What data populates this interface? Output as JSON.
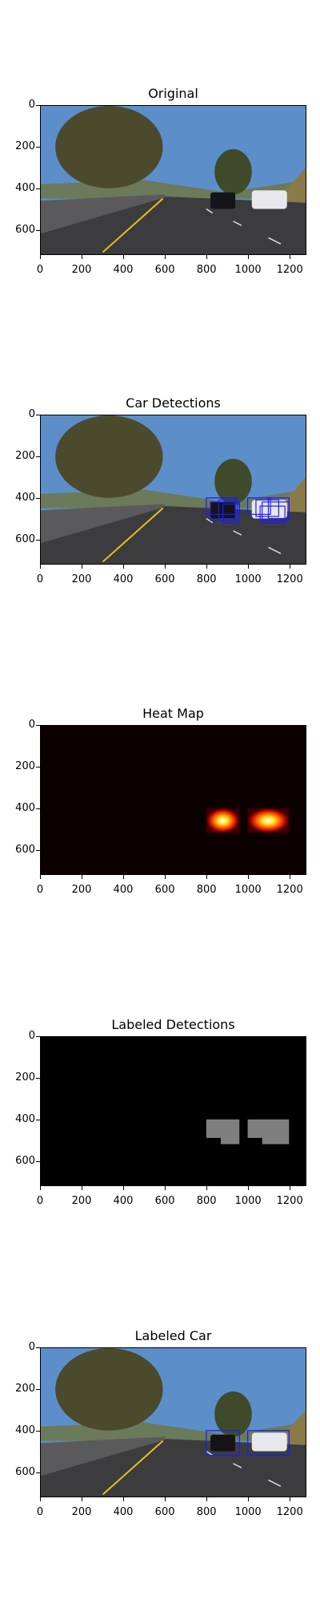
{
  "panels": [
    {
      "key": "original",
      "title": "Original",
      "kind": "photo",
      "boxes": []
    },
    {
      "key": "detections",
      "title": "Car Detections",
      "kind": "photo",
      "boxes": "raw"
    },
    {
      "key": "heatmap",
      "title": "Heat Map",
      "kind": "heat"
    },
    {
      "key": "labeled",
      "title": "Labeled Detections",
      "kind": "labels"
    },
    {
      "key": "labeledcar",
      "title": "Labeled Car",
      "kind": "photo",
      "boxes": "final"
    }
  ],
  "axes": {
    "xticks": [
      "0",
      "200",
      "400",
      "600",
      "800",
      "1000",
      "1200"
    ],
    "yticks": [
      "0",
      "200",
      "400",
      "600"
    ],
    "xmax": 1280,
    "ymax": 720
  },
  "colors": {
    "sky": "#5c8fc9",
    "road": "#3c3c3f",
    "box": "#1a1aff",
    "heat_bg": "#0d0000",
    "label_fg": "#7f7f7f",
    "label_bg": "#000000"
  },
  "detections": {
    "raw": [
      [
        800,
        400,
        950,
        480
      ],
      [
        820,
        420,
        960,
        510
      ],
      [
        860,
        410,
        940,
        500
      ],
      [
        880,
        430,
        960,
        520
      ],
      [
        1000,
        400,
        1110,
        480
      ],
      [
        1040,
        410,
        1150,
        490
      ],
      [
        1070,
        420,
        1200,
        510
      ],
      [
        1100,
        400,
        1200,
        500
      ],
      [
        1060,
        440,
        1180,
        520
      ]
    ],
    "final": [
      [
        800,
        400,
        960,
        520
      ],
      [
        1000,
        400,
        1200,
        520
      ]
    ]
  },
  "heat_blobs": [
    [
      800,
      400,
      960,
      520
    ],
    [
      1000,
      400,
      1200,
      520
    ]
  ]
}
